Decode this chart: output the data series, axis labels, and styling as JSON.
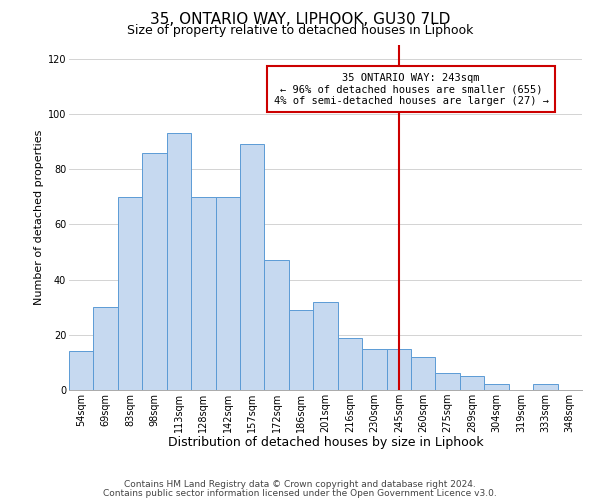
{
  "title": "35, ONTARIO WAY, LIPHOOK, GU30 7LD",
  "subtitle": "Size of property relative to detached houses in Liphook",
  "xlabel": "Distribution of detached houses by size in Liphook",
  "ylabel": "Number of detached properties",
  "bar_labels": [
    "54sqm",
    "69sqm",
    "83sqm",
    "98sqm",
    "113sqm",
    "128sqm",
    "142sqm",
    "157sqm",
    "172sqm",
    "186sqm",
    "201sqm",
    "216sqm",
    "230sqm",
    "245sqm",
    "260sqm",
    "275sqm",
    "289sqm",
    "304sqm",
    "319sqm",
    "333sqm",
    "348sqm"
  ],
  "bar_heights": [
    14,
    30,
    70,
    86,
    93,
    70,
    70,
    89,
    47,
    29,
    32,
    19,
    15,
    15,
    12,
    6,
    5,
    2,
    0,
    2,
    0
  ],
  "bar_color": "#c6d9f0",
  "bar_edge_color": "#5b9bd5",
  "vline_x_index": 13,
  "vline_color": "#cc0000",
  "ylim": [
    0,
    125
  ],
  "yticks": [
    0,
    20,
    40,
    60,
    80,
    100,
    120
  ],
  "annotation_title": "35 ONTARIO WAY: 243sqm",
  "annotation_line1": "← 96% of detached houses are smaller (655)",
  "annotation_line2": "4% of semi-detached houses are larger (27) →",
  "annotation_box_color": "#ffffff",
  "annotation_box_edge": "#cc0000",
  "footer_line1": "Contains HM Land Registry data © Crown copyright and database right 2024.",
  "footer_line2": "Contains public sector information licensed under the Open Government Licence v3.0.",
  "background_color": "#ffffff",
  "grid_color": "#cccccc",
  "title_fontsize": 11,
  "subtitle_fontsize": 9,
  "xlabel_fontsize": 9,
  "ylabel_fontsize": 8,
  "tick_fontsize": 7,
  "annotation_fontsize": 7.5,
  "footer_fontsize": 6.5
}
